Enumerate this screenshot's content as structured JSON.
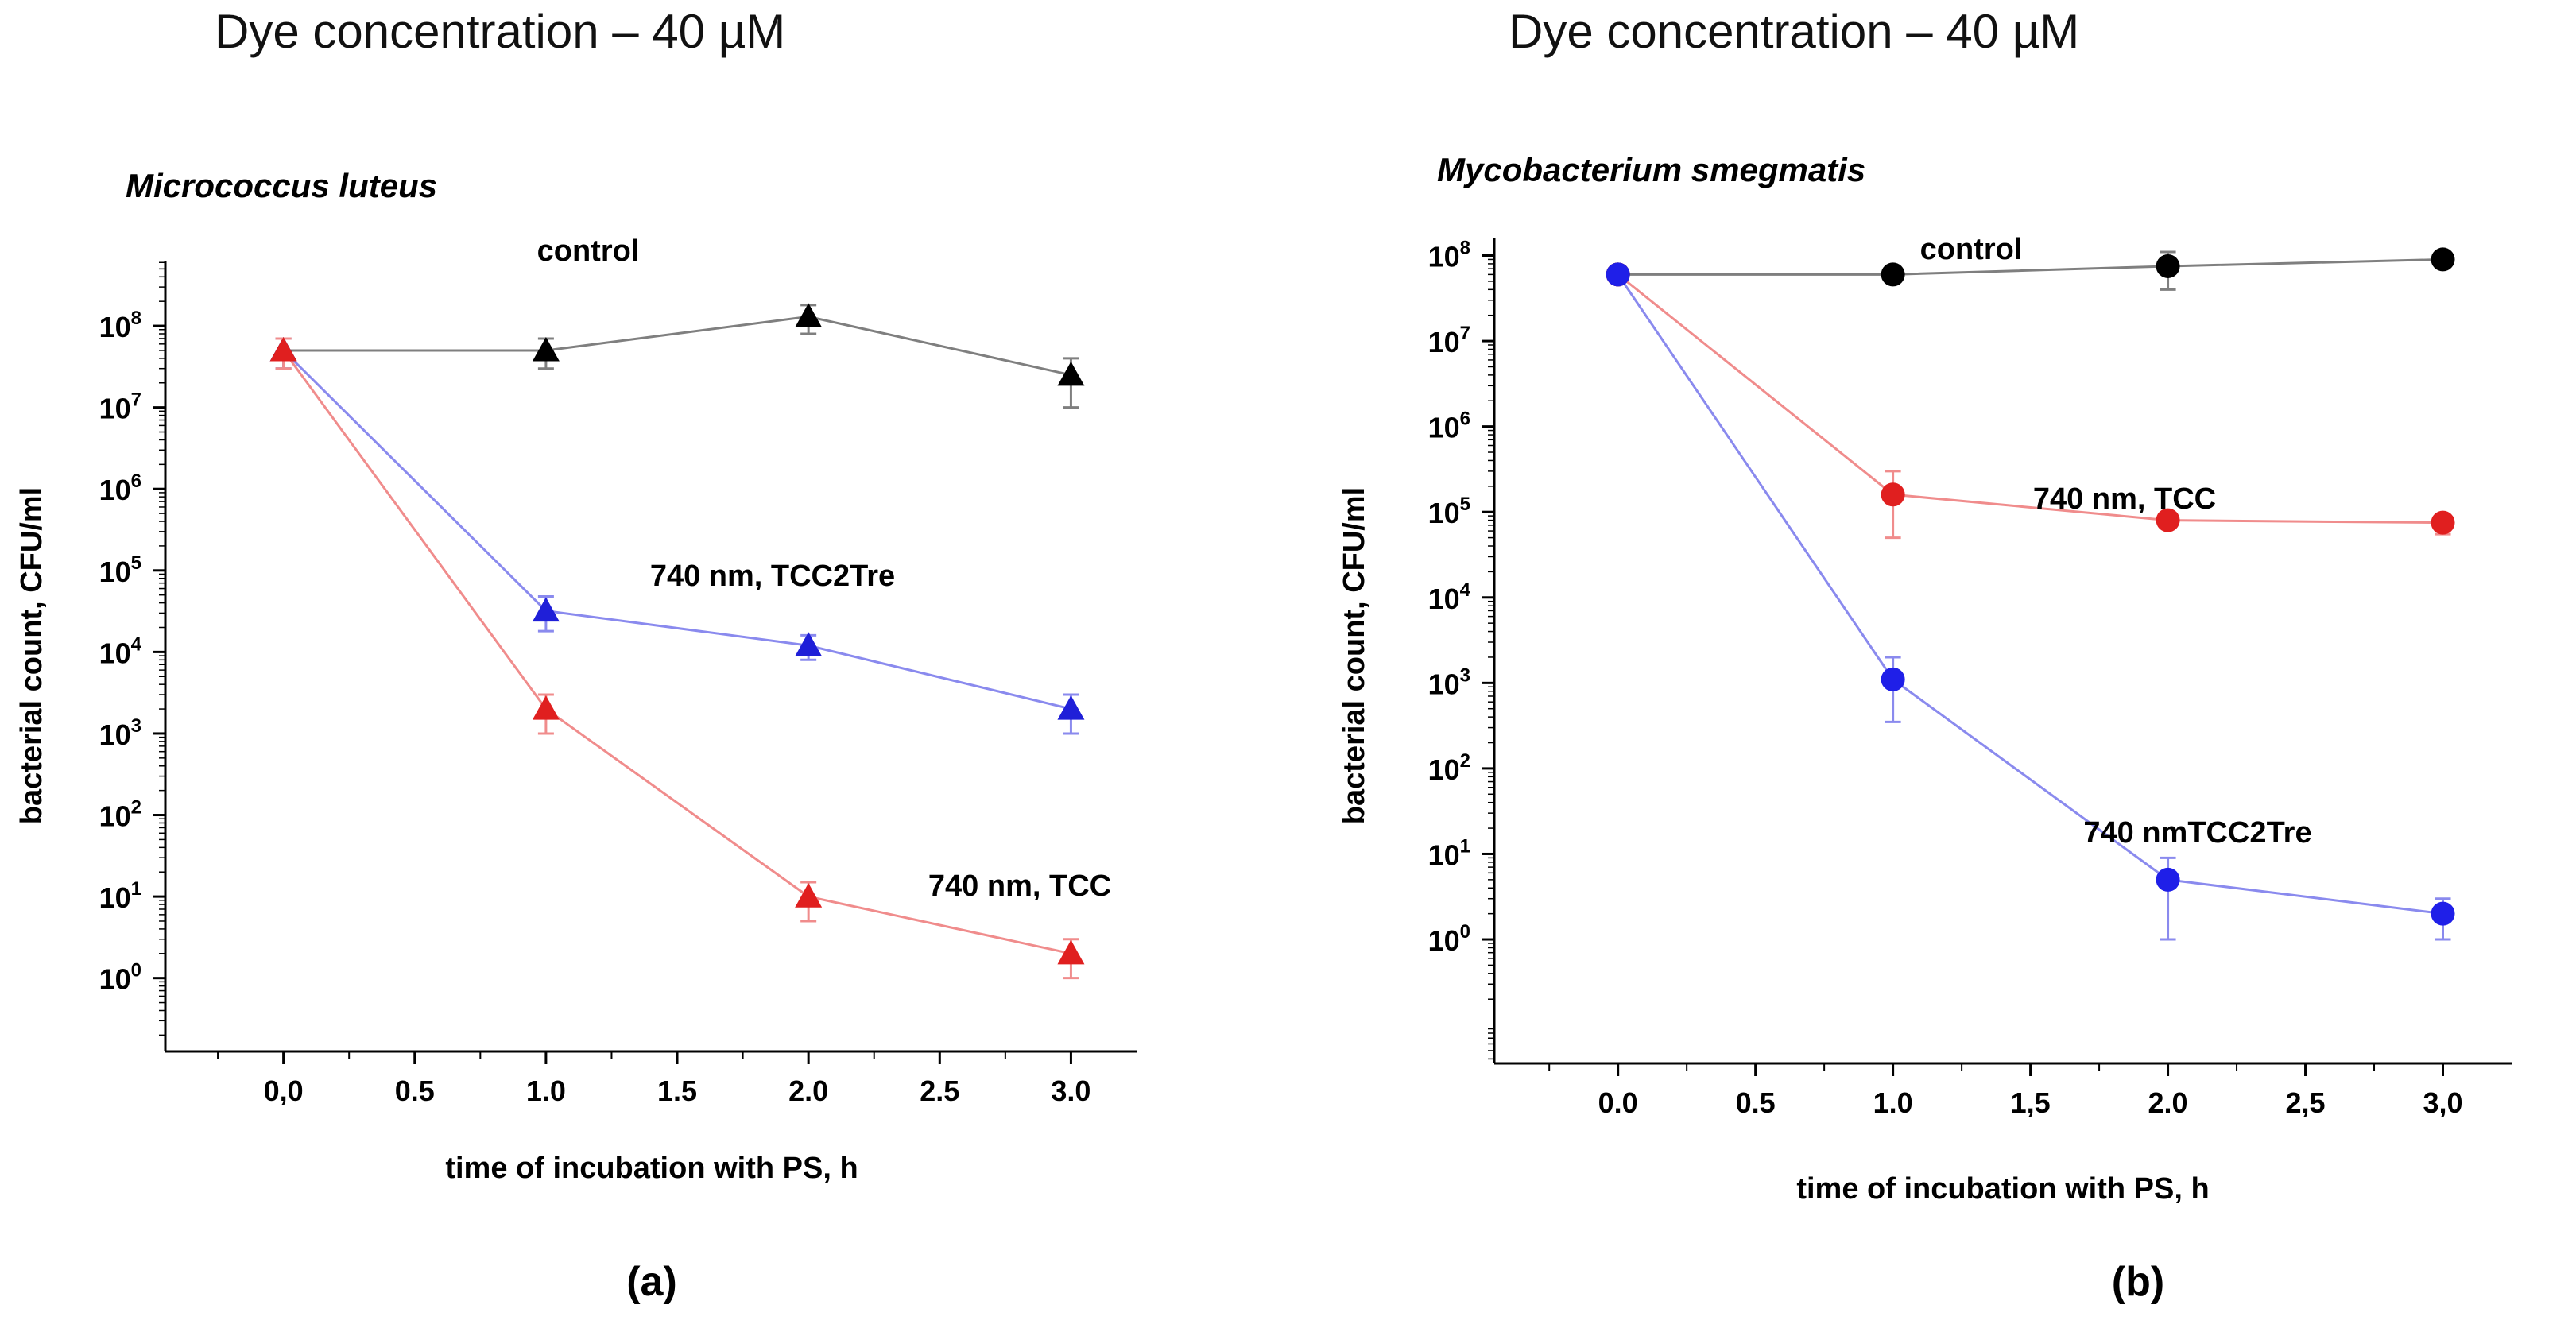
{
  "chart_data": [
    {
      "type": "line",
      "heading": "Dye concentration – 40 µM",
      "title": "Micrococcus luteus",
      "xlabel": "time of incubation with PS, h",
      "ylabel": "bacterial count, CFU/ml",
      "panel_label": "(a)",
      "x_scale": "linear",
      "y_scale": "log",
      "xlim": [
        -0.45,
        3.25
      ],
      "ylim_log10": [
        -0.9,
        8.8
      ],
      "x_ticks": [
        {
          "value": 0,
          "label": "0,0"
        },
        {
          "value": 0.5,
          "label": "0.5"
        },
        {
          "value": 1,
          "label": "1.0"
        },
        {
          "value": 1.5,
          "label": "1.5"
        },
        {
          "value": 2,
          "label": "2.0"
        },
        {
          "value": 2.5,
          "label": "2.5"
        },
        {
          "value": 3,
          "label": "3.0"
        }
      ],
      "y_tick_exponents": [
        0,
        1,
        2,
        3,
        4,
        5,
        6,
        7,
        8
      ],
      "y_tick_base": "10",
      "marker": "triangle",
      "grid": false,
      "series": [
        {
          "name": "control",
          "color": "#000000",
          "line_color": "#7f7f7f",
          "x": [
            0,
            1,
            2,
            3
          ],
          "y": [
            50000000,
            50000000,
            130000000,
            25000000
          ],
          "y_err_low": [
            30000000,
            30000000,
            80000000,
            10000000
          ],
          "y_err_high": [
            70000000,
            70000000,
            180000000,
            40000000
          ]
        },
        {
          "name": "740 nm, TCC2Tre",
          "color": "#1f1fd8",
          "line_color": "#8a8aee",
          "x": [
            0,
            1,
            2,
            3
          ],
          "y": [
            50000000,
            32000,
            12000,
            2000
          ],
          "y_err_low": [
            30000000,
            18000,
            8000,
            1000
          ],
          "y_err_high": [
            70000000,
            48000,
            16000,
            3000
          ]
        },
        {
          "name": "740 nm, TCC",
          "color": "#e01f1f",
          "line_color": "#f08c8c",
          "x": [
            0,
            1,
            2,
            3
          ],
          "y": [
            50000000,
            2000,
            10,
            2
          ],
          "y_err_low": [
            30000000,
            1000,
            5,
            1
          ],
          "y_err_high": [
            70000000,
            3000,
            15,
            3
          ]
        }
      ]
    },
    {
      "type": "line",
      "heading": "Dye concentration – 40 µM",
      "title": "Mycobacterium smegmatis",
      "xlabel": "time of incubation with PS, h",
      "ylabel": "bacterial count, CFU/ml",
      "panel_label": "(b)",
      "x_scale": "linear",
      "y_scale": "log",
      "xlim": [
        -0.45,
        3.25
      ],
      "ylim_log10": [
        -1.45,
        8.2
      ],
      "x_ticks": [
        {
          "value": 0,
          "label": "0.0"
        },
        {
          "value": 0.5,
          "label": "0.5"
        },
        {
          "value": 1,
          "label": "1.0"
        },
        {
          "value": 1.5,
          "label": "1,5"
        },
        {
          "value": 2,
          "label": "2.0"
        },
        {
          "value": 2.5,
          "label": "2,5"
        },
        {
          "value": 3,
          "label": "3,0"
        }
      ],
      "y_tick_exponents": [
        0,
        1,
        2,
        3,
        4,
        5,
        6,
        7,
        8
      ],
      "y_tick_base": "10",
      "marker": "circle",
      "grid": false,
      "series": [
        {
          "name": "control",
          "color": "#000000",
          "line_color": "#7f7f7f",
          "x": [
            0,
            1,
            2,
            3
          ],
          "y": [
            60000000,
            60000000,
            75000000,
            90000000
          ],
          "y_err_low": [
            60000000,
            60000000,
            40000000,
            90000000
          ],
          "y_err_high": [
            60000000,
            60000000,
            110000000,
            90000000
          ]
        },
        {
          "name": "740 nm, TCC",
          "color": "#e01f1f",
          "line_color": "#f08c8c",
          "x": [
            0,
            1,
            2,
            3
          ],
          "y": [
            60000000,
            160000,
            80000,
            75000
          ],
          "y_err_low": [
            60000000,
            50000,
            80000,
            55000
          ],
          "y_err_high": [
            60000000,
            300000,
            80000,
            95000
          ]
        },
        {
          "name": "740 nmTCC2Tre",
          "color": "#1f1fe8",
          "line_color": "#8a8aee",
          "x": [
            0,
            1,
            2,
            3
          ],
          "y": [
            60000000,
            1100,
            5,
            2
          ],
          "y_err_low": [
            60000000,
            350,
            1,
            1
          ],
          "y_err_high": [
            60000000,
            2000,
            9,
            3
          ]
        }
      ]
    }
  ]
}
